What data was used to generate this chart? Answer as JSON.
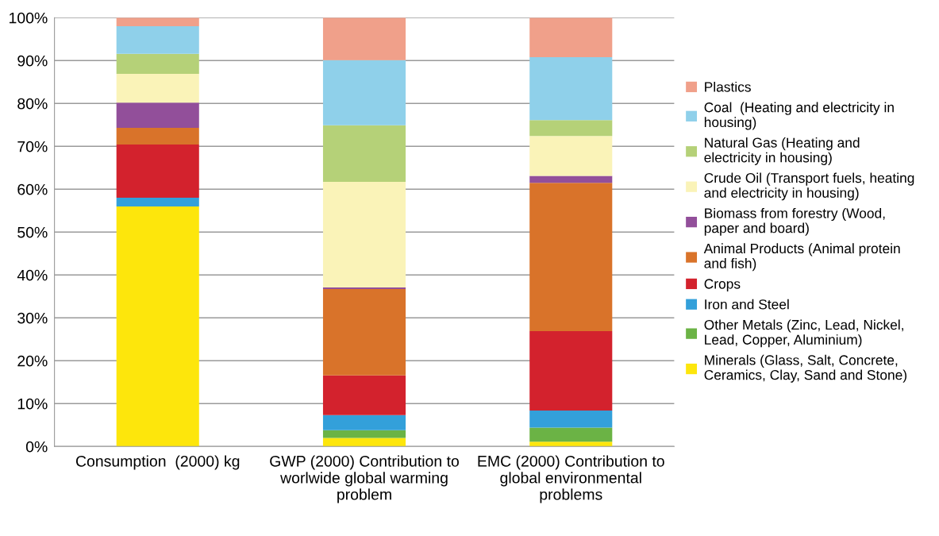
{
  "chart_data": {
    "type": "bar",
    "stacked": true,
    "categories": [
      "Consumption  (2000) kg",
      "GWP (2000) Contribution to\nworlwide global warming\nproblem",
      "EMC (2000) Contribution to\nglobal environmental\nproblems"
    ],
    "series": [
      {
        "name": "Minerals (Glass, Salt, Concrete,\nCeramics, Clay, Sand and Stone)",
        "color": "#fde60c",
        "values": [
          56.0,
          2.0,
          1.1
        ]
      },
      {
        "name": "Other Metals (Zinc, Lead, Nickel,\nLead, Copper, Aluminium)",
        "color": "#6bb345",
        "values": [
          0,
          1.8,
          3.3
        ]
      },
      {
        "name": "Iron and Steel",
        "color": "#33a0da",
        "values": [
          2.0,
          3.5,
          4.0
        ]
      },
      {
        "name": "Crops",
        "color": "#d3222d",
        "values": [
          12.4,
          9.3,
          18.5
        ]
      },
      {
        "name": "Animal Products (Animal protein\nand fish)",
        "color": "#d9732a",
        "values": [
          3.9,
          20.1,
          34.6
        ]
      },
      {
        "name": "Biomass from forestry (Wood,\npaper and board)",
        "color": "#924f9a",
        "values": [
          5.9,
          0.4,
          1.6
        ]
      },
      {
        "name": "Crude Oil (Transport fuels, heating\nand electricity in housing)",
        "color": "#faf3b8",
        "values": [
          6.7,
          24.6,
          9.3
        ]
      },
      {
        "name": "Natural Gas (Heating and\nelectricity in housing)",
        "color": "#b5d178",
        "values": [
          4.7,
          13.2,
          3.7
        ]
      },
      {
        "name": "Coal  (Heating and electricity in\nhousing)",
        "color": "#8fd0ea",
        "values": [
          6.4,
          15.2,
          14.7
        ]
      },
      {
        "name": "Plastics",
        "color": "#f0a08a",
        "values": [
          2.0,
          9.9,
          9.2
        ]
      }
    ],
    "ylim": [
      0,
      100
    ],
    "yticks": [
      {
        "value": 0,
        "label": "0%"
      },
      {
        "value": 10,
        "label": "10%"
      },
      {
        "value": 20,
        "label": "20%"
      },
      {
        "value": 30,
        "label": "30%"
      },
      {
        "value": 40,
        "label": "40%"
      },
      {
        "value": 50,
        "label": "50%"
      },
      {
        "value": 60,
        "label": "60%"
      },
      {
        "value": 70,
        "label": "70%"
      },
      {
        "value": 80,
        "label": "80%"
      },
      {
        "value": 90,
        "label": "90%"
      },
      {
        "value": 100,
        "label": "100%"
      }
    ],
    "grid": "y",
    "legend": "right"
  }
}
